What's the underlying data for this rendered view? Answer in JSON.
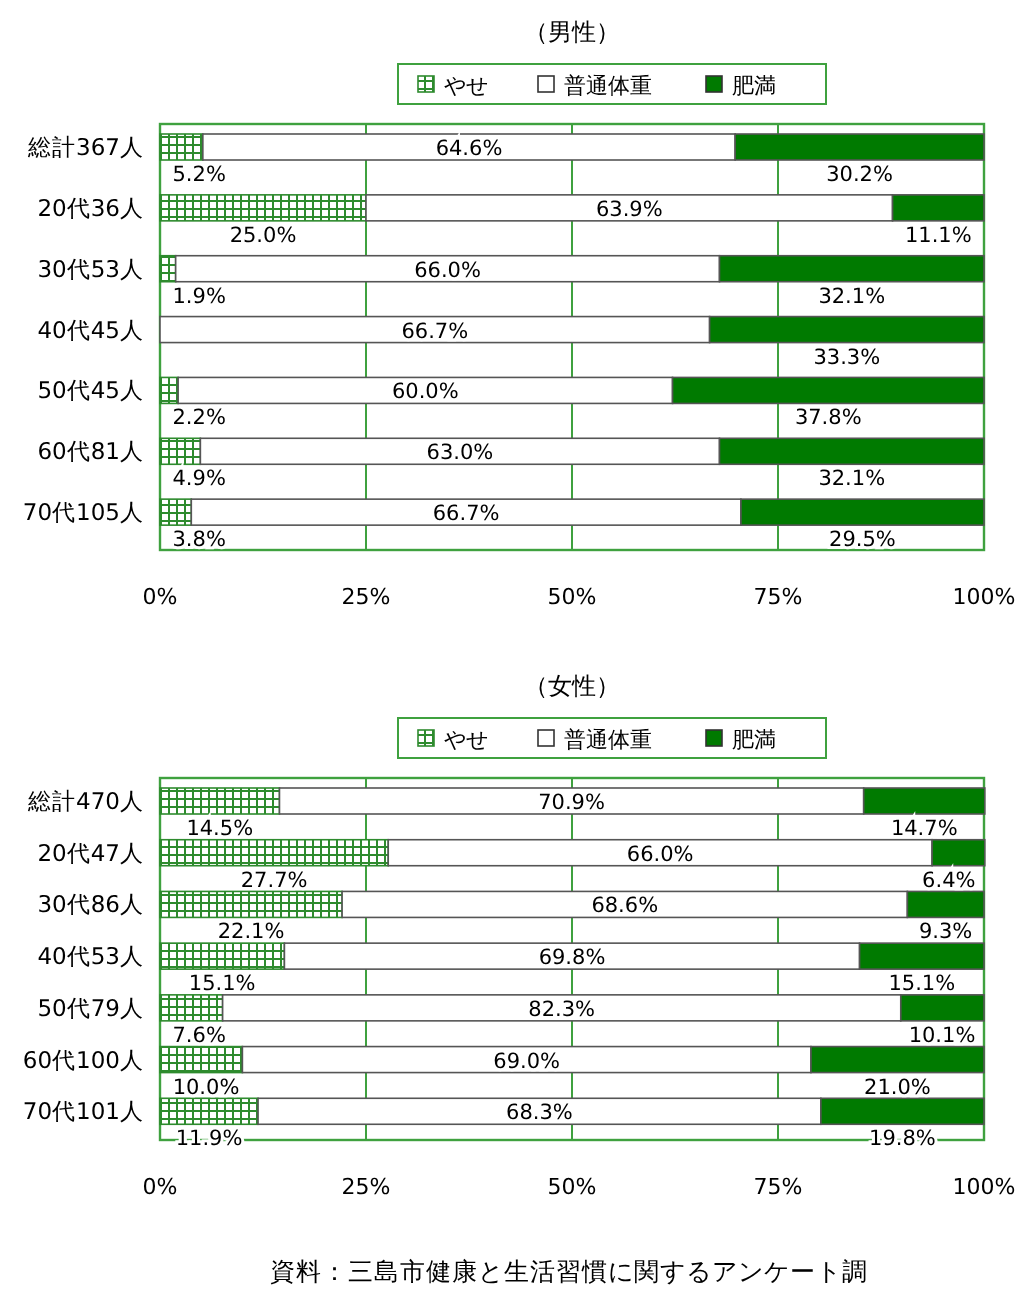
{
  "chart_data": [
    {
      "type": "bar",
      "orientation": "horizontal",
      "stacked": true,
      "title": "（男性）",
      "categories": [
        "総計367人",
        "20代36人",
        "30代53人",
        "40代45人",
        "50代45人",
        "60代81人",
        "70代105人"
      ],
      "series": [
        {
          "name": "やせ",
          "color": "#2e8b2e",
          "values": [
            5.2,
            25.0,
            1.9,
            0,
            2.2,
            4.9,
            3.8
          ],
          "value_labels": [
            "5.2%",
            "25.0%",
            "1.9%",
            null,
            "2.2%",
            "4.9%",
            "3.8%"
          ]
        },
        {
          "name": "普通体重",
          "color": "#ffffff",
          "values": [
            64.6,
            63.9,
            66.0,
            66.7,
            60.0,
            63.0,
            66.7
          ],
          "value_labels": [
            "64.6%",
            "63.9%",
            "66.0%",
            "66.7%",
            "60.0%",
            "63.0%",
            "66.7%"
          ]
        },
        {
          "name": "肥満",
          "color": "#007a00",
          "values": [
            30.2,
            11.1,
            32.1,
            33.3,
            37.8,
            32.1,
            29.5
          ],
          "value_labels": [
            "30.2%",
            "11.1%",
            "32.1%",
            "33.3%",
            "37.8%",
            "32.1%",
            "29.5%"
          ]
        }
      ],
      "xlim": [
        0,
        100
      ],
      "xticks": [
        {
          "value": 0,
          "label": "0%"
        },
        {
          "value": 25,
          "label": "25%"
        },
        {
          "value": 50,
          "label": "50%"
        },
        {
          "value": 75,
          "label": "75%"
        },
        {
          "value": 100,
          "label": "100%"
        }
      ],
      "grid": "x",
      "legend": "top"
    },
    {
      "type": "bar",
      "orientation": "horizontal",
      "stacked": true,
      "title": "（女性）",
      "categories": [
        "総計470人",
        "20代47人",
        "30代86人",
        "40代53人",
        "50代79人",
        "60代100人",
        "70代101人"
      ],
      "series": [
        {
          "name": "やせ",
          "color": "#2e8b2e",
          "values": [
            14.5,
            27.7,
            22.1,
            15.1,
            7.6,
            10.0,
            11.9
          ],
          "value_labels": [
            "14.5%",
            "27.7%",
            "22.1%",
            "15.1%",
            "7.6%",
            "10.0%",
            "11.9%"
          ]
        },
        {
          "name": "普通体重",
          "color": "#ffffff",
          "values": [
            70.9,
            66.0,
            68.6,
            69.8,
            82.3,
            69.0,
            68.3
          ],
          "value_labels": [
            "70.9%",
            "66.0%",
            "68.6%",
            "69.8%",
            "82.3%",
            "69.0%",
            "68.3%"
          ]
        },
        {
          "name": "肥満",
          "color": "#007a00",
          "values": [
            14.7,
            6.4,
            9.3,
            15.1,
            10.1,
            21.0,
            19.8
          ],
          "value_labels": [
            "14.7%",
            "6.4%",
            "9.3%",
            "15.1%",
            "10.1%",
            "21.0%",
            "19.8%"
          ]
        }
      ],
      "xlim": [
        0,
        100
      ],
      "xticks": [
        {
          "value": 0,
          "label": "0%"
        },
        {
          "value": 25,
          "label": "25%"
        },
        {
          "value": 50,
          "label": "50%"
        },
        {
          "value": 75,
          "label": "75%"
        },
        {
          "value": 100,
          "label": "100%"
        }
      ],
      "grid": "x",
      "legend": "top",
      "annotations": [
        "資料：三島市健康と生活習慣に関するアンケート調"
      ]
    }
  ]
}
